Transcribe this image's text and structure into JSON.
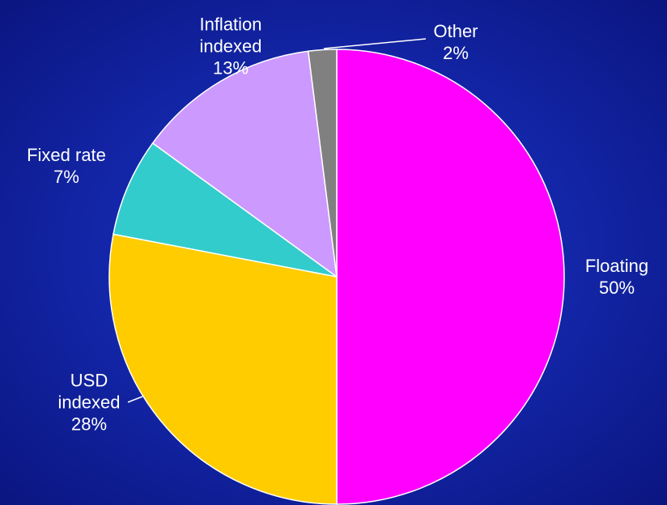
{
  "chart_data": {
    "type": "pie",
    "categories": [
      "Floating",
      "USD indexed",
      "Fixed rate",
      "Inflation indexed",
      "Other"
    ],
    "values": [
      50,
      28,
      7,
      13,
      2
    ],
    "value_labels": [
      "50%",
      "28%",
      "7%",
      "13%",
      "2%"
    ],
    "colors": [
      "#ff00ff",
      "#ffcc00",
      "#33cccc",
      "#cc99ff",
      "#808080"
    ]
  }
}
